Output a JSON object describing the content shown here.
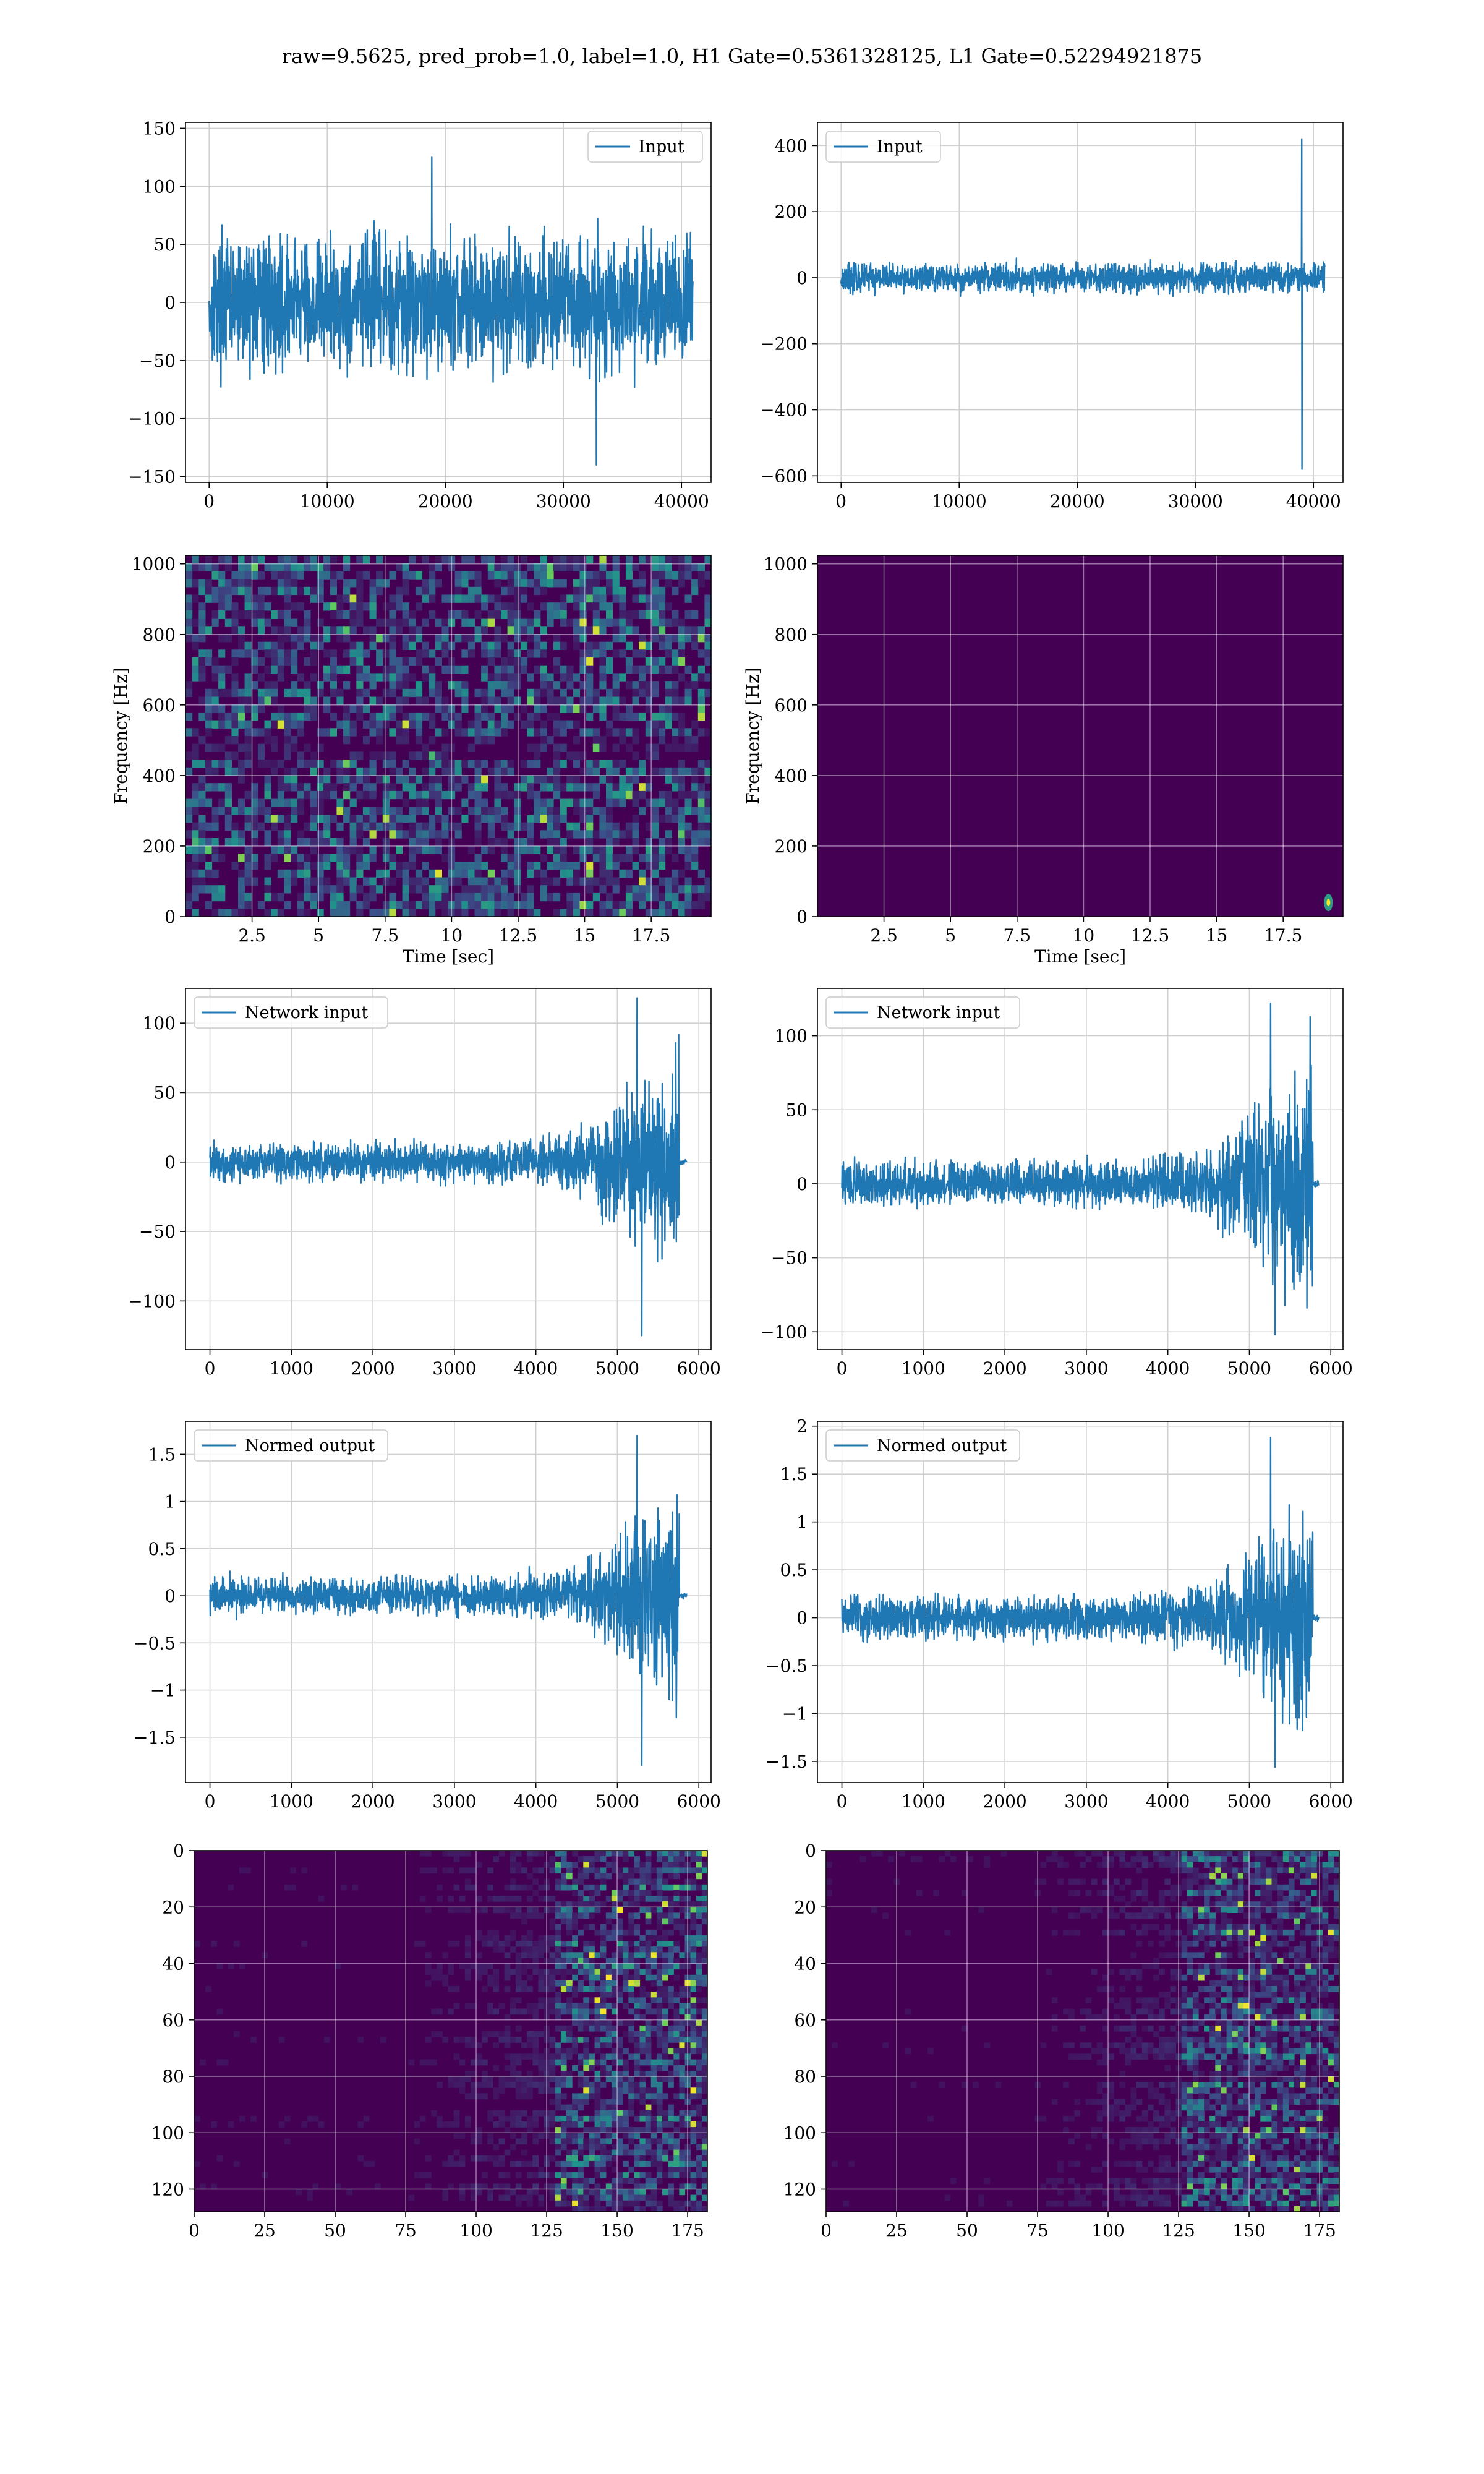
{
  "figure": {
    "suptitle": "raw=9.5625, pred_prob=1.0, label=1.0, H1 Gate=0.5361328125, L1 Gate=0.52294921875"
  },
  "colors": {
    "line": "#1f77b4",
    "grid": "#d0d0d0",
    "viridis_low": "#440154",
    "viridis_mid": "#21918c",
    "viridis_high": "#fde725"
  },
  "chart_data": [
    {
      "id": "input-h1",
      "type": "line",
      "signal": "noise",
      "legend": "Input",
      "legend_loc": "top-right",
      "xlim": [
        -2000,
        42500
      ],
      "ylim": [
        -155,
        155
      ],
      "xticks": [
        0,
        10000,
        20000,
        30000,
        40000
      ],
      "yticks": [
        -150,
        -100,
        -50,
        0,
        50,
        100,
        150
      ],
      "x_range": [
        0,
        40960
      ],
      "amplitude": 38,
      "peak_range": [
        -140,
        125
      ],
      "grid": true,
      "xlabel": "",
      "ylabel": ""
    },
    {
      "id": "input-l1",
      "type": "line",
      "signal": "noise-spike",
      "legend": "Input",
      "legend_loc": "top-left",
      "xlim": [
        -2000,
        42500
      ],
      "ylim": [
        -620,
        470
      ],
      "xticks": [
        0,
        10000,
        20000,
        30000,
        40000
      ],
      "yticks": [
        -600,
        -400,
        -200,
        0,
        200,
        400
      ],
      "x_range": [
        0,
        40960
      ],
      "amplitude": 30,
      "peak_range": [
        -580,
        420
      ],
      "spike_x": 39000,
      "grid": true,
      "xlabel": "",
      "ylabel": ""
    },
    {
      "id": "spectrogram-h1",
      "type": "heatmap",
      "style": "noisy",
      "xlim": [
        0,
        19.75
      ],
      "ylim": [
        0,
        1024
      ],
      "xticks": [
        2.5,
        5.0,
        7.5,
        10.0,
        12.5,
        15.0,
        17.5
      ],
      "yticks": [
        0,
        200,
        400,
        600,
        800,
        1000
      ],
      "xlabel": "Time [sec]",
      "ylabel": "Frequency [Hz]",
      "grid": true
    },
    {
      "id": "spectrogram-l1",
      "type": "heatmap",
      "style": "flat",
      "xlim": [
        0,
        19.75
      ],
      "ylim": [
        0,
        1024
      ],
      "xticks": [
        2.5,
        5.0,
        7.5,
        10.0,
        12.5,
        15.0,
        17.5
      ],
      "yticks": [
        0,
        200,
        400,
        600,
        800,
        1000
      ],
      "xlabel": "Time [sec]",
      "ylabel": "Frequency [Hz]",
      "grid": true,
      "hotspot": {
        "x": 19.2,
        "y": 40
      }
    },
    {
      "id": "network-input-h1",
      "type": "line",
      "signal": "chirp",
      "legend": "Network input",
      "legend_loc": "top-left",
      "xlim": [
        -300,
        6150
      ],
      "ylim": [
        -135,
        125
      ],
      "xticks": [
        0,
        1000,
        2000,
        3000,
        4000,
        5000,
        6000
      ],
      "yticks": [
        -100,
        -50,
        0,
        50,
        100
      ],
      "x_range": [
        0,
        5850
      ],
      "end": 5760,
      "amplitude": 9,
      "peak_range": [
        -125,
        118
      ],
      "grid": true,
      "xlabel": "",
      "ylabel": ""
    },
    {
      "id": "network-input-l1",
      "type": "line",
      "signal": "chirp",
      "legend": "Network input",
      "legend_loc": "top-left",
      "xlim": [
        -300,
        6150
      ],
      "ylim": [
        -112,
        132
      ],
      "xticks": [
        0,
        1000,
        2000,
        3000,
        4000,
        5000,
        6000
      ],
      "yticks": [
        -100,
        -50,
        0,
        50,
        100
      ],
      "x_range": [
        0,
        5850
      ],
      "end": 5780,
      "amplitude": 10,
      "peak_range": [
        -102,
        122
      ],
      "grid": true,
      "xlabel": "",
      "ylabel": ""
    },
    {
      "id": "normed-output-h1",
      "type": "line",
      "signal": "chirp",
      "legend": "Normed output",
      "legend_loc": "top-left",
      "xlim": [
        -300,
        6150
      ],
      "ylim": [
        -1.98,
        1.85
      ],
      "xticks": [
        0,
        1000,
        2000,
        3000,
        4000,
        5000,
        6000
      ],
      "yticks": [
        -1.5,
        -1.0,
        -0.5,
        0.0,
        0.5,
        1.0,
        1.5
      ],
      "x_range": [
        0,
        5850
      ],
      "end": 5760,
      "amplitude": 0.13,
      "peak_range": [
        -1.8,
        1.7
      ],
      "grid": true,
      "xlabel": "",
      "ylabel": ""
    },
    {
      "id": "normed-output-l1",
      "type": "line",
      "signal": "chirp",
      "legend": "Normed output",
      "legend_loc": "top-left",
      "xlim": [
        -300,
        6150
      ],
      "ylim": [
        -1.72,
        2.05
      ],
      "xticks": [
        0,
        1000,
        2000,
        3000,
        4000,
        5000,
        6000
      ],
      "yticks": [
        -1.5,
        -1.0,
        -0.5,
        0.0,
        0.5,
        1.0,
        1.5,
        2.0
      ],
      "x_range": [
        0,
        5850
      ],
      "end": 5780,
      "amplitude": 0.15,
      "peak_range": [
        -1.56,
        1.88
      ],
      "grid": true,
      "xlabel": "",
      "ylabel": ""
    },
    {
      "id": "feature-map-h1",
      "type": "heatmap",
      "style": "features",
      "xlim": [
        0,
        182
      ],
      "ylim": [
        128,
        0
      ],
      "xticks": [
        0,
        25,
        50,
        75,
        100,
        125,
        150,
        175
      ],
      "yticks": [
        0,
        20,
        40,
        60,
        80,
        100,
        120
      ],
      "xlabel": "",
      "ylabel": "",
      "grid": true,
      "onset": 128
    },
    {
      "id": "feature-map-l1",
      "type": "heatmap",
      "style": "features",
      "xlim": [
        0,
        182
      ],
      "ylim": [
        128,
        0
      ],
      "xticks": [
        0,
        25,
        50,
        75,
        100,
        125,
        150,
        175
      ],
      "yticks": [
        0,
        20,
        40,
        60,
        80,
        100,
        120
      ],
      "xlabel": "",
      "ylabel": "",
      "grid": true,
      "onset": 125
    }
  ]
}
